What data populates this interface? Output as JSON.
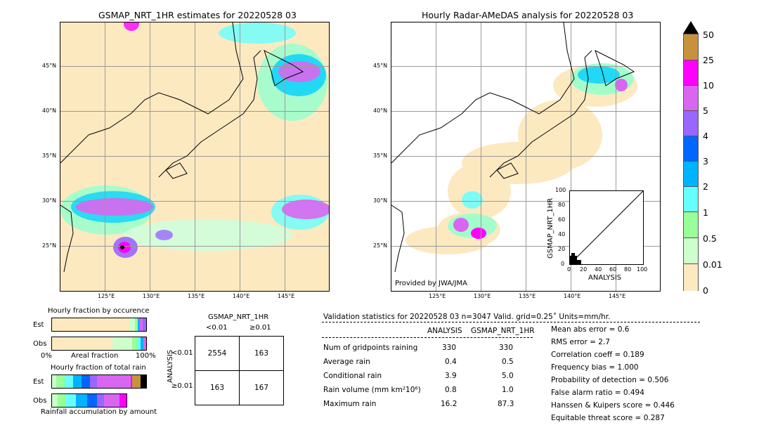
{
  "left_map": {
    "title": "GSMAP_NRT_1HR estimates for 20220528 03",
    "lat_labels": [
      "45°N",
      "40°N",
      "35°N",
      "30°N",
      "25°N"
    ],
    "lon_labels": [
      "125°E",
      "130°E",
      "135°E",
      "140°E",
      "145°E"
    ]
  },
  "right_map": {
    "title": "Hourly Radar-AMeDAS analysis for 20220528 03",
    "lat_labels": [
      "45°N",
      "40°N",
      "35°N",
      "30°N",
      "25°N"
    ],
    "lon_labels": [
      "125°E",
      "130°E",
      "135°E",
      "140°E",
      "145°E"
    ],
    "credit": "Provided by JWA/JMA"
  },
  "scatter_inset": {
    "ylabel": "GSMAP_NRT_1HR",
    "xlabel": "ANALYSIS",
    "ticks": [
      "0",
      "20",
      "40",
      "60",
      "80",
      "100"
    ]
  },
  "colorbar": {
    "labels": [
      "50",
      "25",
      "10",
      "5",
      "4",
      "3",
      "2",
      "1",
      "0.5",
      "0.01",
      "0"
    ],
    "colors": [
      "#c8913c",
      "#ff00ff",
      "#d966f0",
      "#9966ff",
      "#0066ff",
      "#00b3ff",
      "#00e6ff",
      "#66ffb3",
      "#99ff99",
      "#ccffcc",
      "#fde9c0"
    ]
  },
  "occurrence": {
    "title": "Hourly fraction by occurence",
    "row1": "Est",
    "row2": "Obs",
    "axis_left": "0%",
    "axis_mid": "Areal fraction",
    "axis_right": "100%"
  },
  "total_rain": {
    "title": "Hourly fraction of total rain",
    "row1": "Est",
    "row2": "Obs",
    "footer": "Rainfall accumulation by amount"
  },
  "contingency": {
    "header": "GSMAP_NRT_1HR",
    "col1": "<0.01",
    "col2": "≥0.01",
    "side": "ANALYSIS",
    "row1": "<0.01",
    "row2": "≥0.01",
    "cells": [
      "2554",
      "163",
      "163",
      "167"
    ]
  },
  "validation": {
    "header": "Validation statistics for 20220528 03  n=3047 Valid. grid=0.25˚ Units=mm/hr.",
    "col_analysis": "ANALYSIS",
    "col_gsmap": "GSMAP_NRT_1HR",
    "rows": [
      {
        "label": "Num of gridpoints raining",
        "a": "330",
        "g": "330"
      },
      {
        "label": "Average rain",
        "a": "0.4",
        "g": "0.5"
      },
      {
        "label": "Conditional rain",
        "a": "3.9",
        "g": "5.0"
      },
      {
        "label": "Rain volume (mm km²10⁶)",
        "a": "0.8",
        "g": "1.0"
      },
      {
        "label": "Maximum rain",
        "a": "16.2",
        "g": "87.3"
      }
    ],
    "scores": [
      "Mean abs error =    0.6",
      "RMS error =    2.7",
      "Correlation coeff =  0.189",
      "Frequency bias =  1.000",
      "Probability of detection =  0.506",
      "False alarm ratio =  0.494",
      "Hanssen & Kuipers score =  0.446",
      "Equitable threat score =  0.287"
    ]
  },
  "chart_data": {
    "type": "heatmap",
    "contingency_table": {
      "rows": [
        "<0.01",
        "≥0.01"
      ],
      "cols": [
        "<0.01",
        "≥0.01"
      ],
      "values": [
        [
          2554,
          163
        ],
        [
          163,
          167
        ]
      ]
    },
    "statistics": {
      "n": 3047,
      "grid_deg": 0.25,
      "units": "mm/hr"
    }
  }
}
